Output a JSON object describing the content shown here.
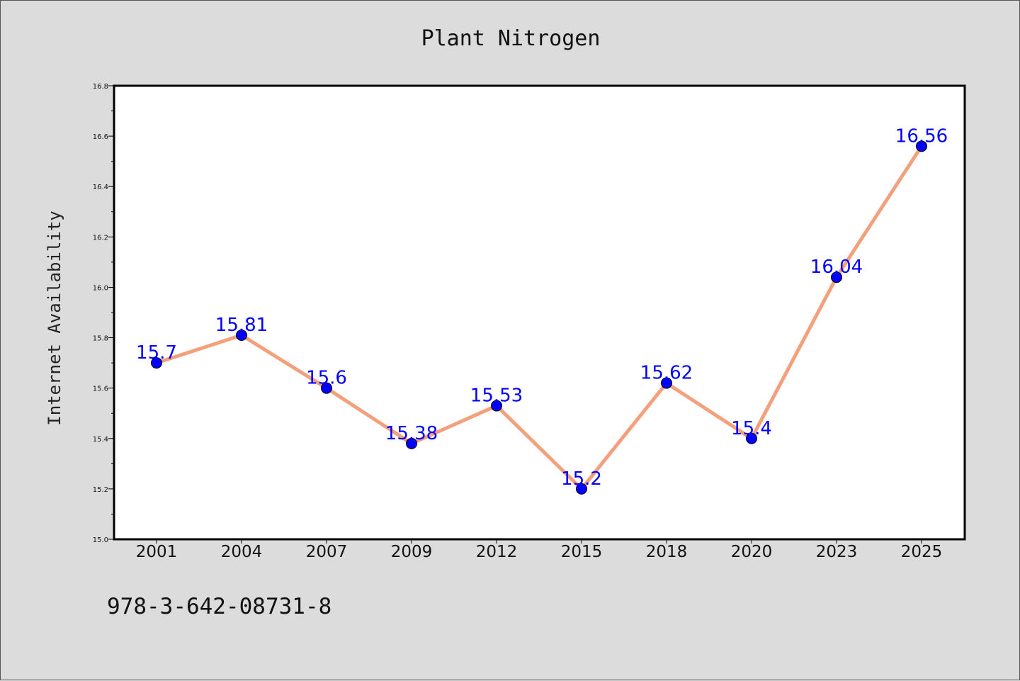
{
  "chart_data": {
    "type": "line",
    "title": "Plant Nitrogen",
    "xlabel": "",
    "ylabel": "Internet Availability",
    "categories": [
      "2001",
      "2004",
      "2007",
      "2009",
      "2012",
      "2015",
      "2018",
      "2020",
      "2023",
      "2025"
    ],
    "series": [
      {
        "values": [
          15.7,
          15.81,
          15.6,
          15.38,
          15.53,
          15.2,
          15.62,
          15.4,
          16.04,
          16.56
        ],
        "labels": [
          "15.7",
          "15.81",
          "15.6",
          "15.38",
          "15.53",
          "15.2",
          "15.62",
          "15.4",
          "16.04",
          "16.56"
        ],
        "line_color": "#f4a07c",
        "marker_color": "#0000ff"
      }
    ],
    "ylim": [
      15.0,
      16.8
    ],
    "yticks": [
      "15.0",
      "15.2",
      "15.4",
      "15.6",
      "15.8",
      "16.0",
      "16.2",
      "16.4",
      "16.6",
      "16.8"
    ],
    "grid": false,
    "legend": "none"
  },
  "footnote": "978-3-642-08731-8"
}
